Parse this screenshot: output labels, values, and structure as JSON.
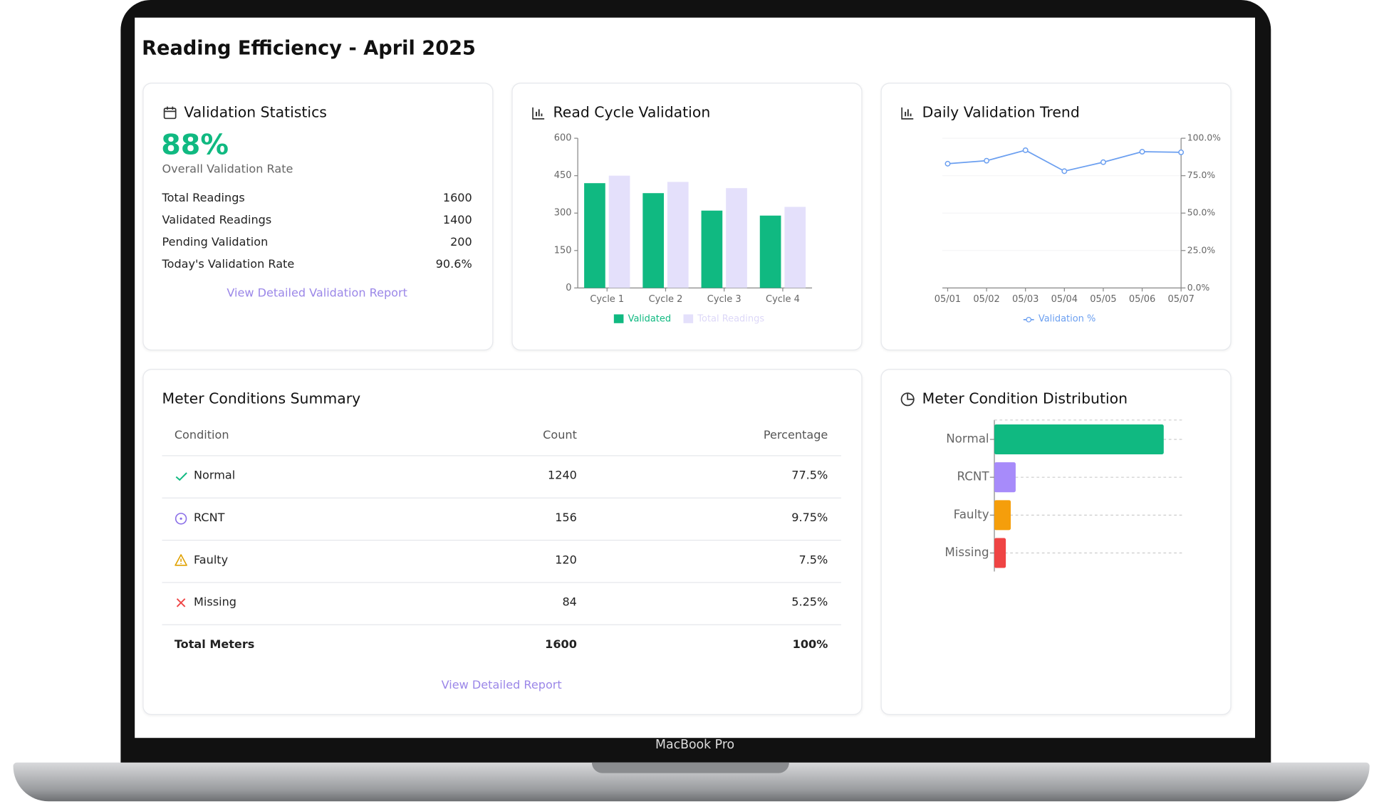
{
  "header": {
    "title": "Reading Efficiency - April 2025"
  },
  "device_label": "MacBook Pro",
  "validation_stats": {
    "title": "Validation Statistics",
    "rate": "88%",
    "rate_label": "Overall Validation Rate",
    "rows": [
      [
        "Total Readings",
        "1600"
      ],
      [
        "Validated Readings",
        "1400"
      ],
      [
        "Pending Validation",
        "200"
      ],
      [
        "Today's Validation Rate",
        "90.6%"
      ]
    ],
    "link": "View Detailed Validation Report"
  },
  "chart_data": [
    {
      "type": "bar",
      "title": "Read Cycle Validation",
      "categories": [
        "Cycle 1",
        "Cycle 2",
        "Cycle 3",
        "Cycle 4"
      ],
      "series": [
        {
          "name": "Validated",
          "color": "#10b981",
          "values": [
            420,
            380,
            310,
            290
          ]
        },
        {
          "name": "Total Readings",
          "color": "#e4e0fb",
          "values": [
            450,
            425,
            400,
            325
          ]
        }
      ],
      "ylim": [
        0,
        600
      ],
      "yticks": [
        0,
        150,
        300,
        450,
        600
      ]
    },
    {
      "type": "line",
      "title": "Daily Validation Trend",
      "x": [
        "05/01",
        "05/02",
        "05/03",
        "05/04",
        "05/05",
        "05/06",
        "05/07"
      ],
      "series": [
        {
          "name": "Validation %",
          "color": "#6b9ff0",
          "values": [
            83,
            85,
            92,
            78,
            84,
            91,
            90.6
          ],
          "axis": "y2"
        }
      ],
      "y2lim": [
        0,
        100
      ],
      "y2ticks": [
        {
          "value": 0,
          "label": "0.0%"
        },
        {
          "value": 25,
          "label": "25.0%"
        },
        {
          "value": 50,
          "label": "50.0%"
        },
        {
          "value": 75,
          "label": "75.0%"
        },
        {
          "value": 100,
          "label": "100.0%"
        }
      ],
      "grid": true
    },
    {
      "type": "hbar",
      "title": "Meter Condition Distribution",
      "categories": [
        "Normal",
        "RCNT",
        "Faulty",
        "Missing"
      ],
      "values": [
        1240,
        156,
        120,
        84
      ],
      "colors": [
        "#10b981",
        "#a78bfa",
        "#f59e0b",
        "#ef4444"
      ],
      "xlim": [
        0,
        1380
      ],
      "grid": true
    }
  ],
  "table": {
    "title": "Meter Conditions Summary",
    "columns": [
      "Condition",
      "Count",
      "Percentage"
    ],
    "rows": [
      [
        "Normal",
        "1240",
        "77.5%"
      ],
      [
        "RCNT",
        "156",
        "9.75%"
      ],
      [
        "Faulty",
        "120",
        "7.5%"
      ],
      [
        "Missing",
        "84",
        "5.25%"
      ]
    ],
    "total": [
      "Total Meters",
      "1600",
      "100%"
    ],
    "link": "View Detailed Report"
  }
}
